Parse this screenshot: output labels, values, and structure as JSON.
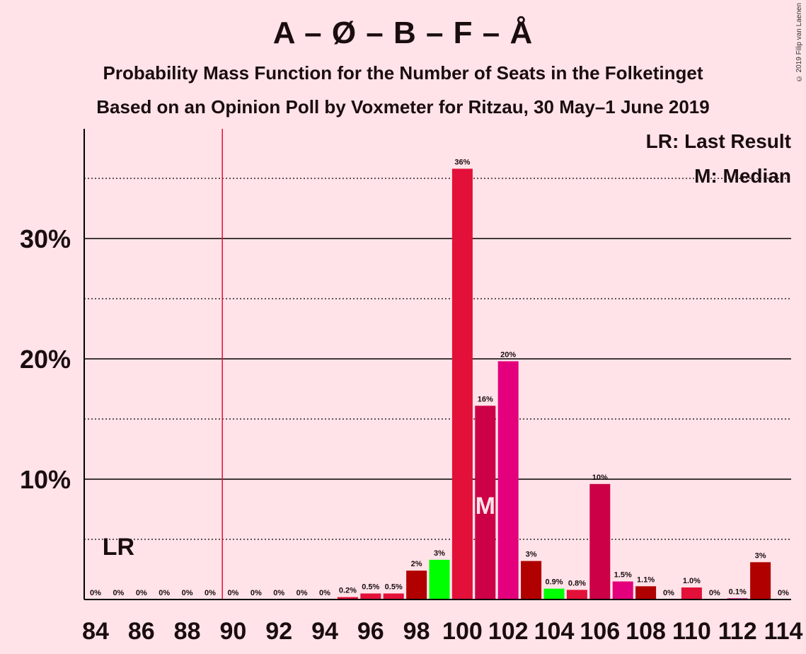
{
  "header": {
    "title": "A – Ø – B – F – Å",
    "subtitle": "Probability Mass Function for the Number of Seats in the Folketinget",
    "subtitle2": "Based on an Opinion Poll by Voxmeter for Ritzau, 30 May–1 June 2019",
    "copyright": "© 2019 Filip van Laenen"
  },
  "legend": {
    "lr": "LR: Last Result",
    "median": "M: Median"
  },
  "markers": {
    "lr_label": "LR",
    "median_label": "M"
  },
  "chart_data": {
    "type": "bar",
    "x": [
      84,
      85,
      86,
      87,
      88,
      89,
      90,
      91,
      92,
      93,
      94,
      95,
      96,
      97,
      98,
      99,
      100,
      101,
      102,
      103,
      104,
      105,
      106,
      107,
      108,
      109,
      110,
      111,
      112,
      113,
      114
    ],
    "values": [
      0,
      0,
      0,
      0,
      0,
      0,
      0,
      0,
      0,
      0,
      0,
      0.2,
      0.5,
      0.5,
      2.4,
      3.3,
      35.8,
      16.1,
      19.8,
      3.2,
      0.9,
      0.8,
      9.6,
      1.5,
      1.1,
      0,
      1.0,
      0,
      0.1,
      3.1,
      0
    ],
    "data_labels": [
      "0%",
      "0%",
      "0%",
      "0%",
      "0%",
      "0%",
      "0%",
      "0%",
      "0%",
      "0%",
      "0%",
      "0.2%",
      "0.5%",
      "0.5%",
      "2%",
      "3%",
      "36%",
      "16%",
      "20%",
      "3%",
      "0.9%",
      "0.8%",
      "10%",
      "1.5%",
      "1.1%",
      "0%",
      "1.0%",
      "0%",
      "0.1%",
      "3%",
      "0%"
    ],
    "colors": [
      "#E31039",
      "#E31039",
      "#E31039",
      "#E31039",
      "#E31039",
      "#E31039",
      "#E31039",
      "#E31039",
      "#E31039",
      "#E31039",
      "#E31039",
      "#E31039",
      "#E31039",
      "#E31039",
      "#B00000",
      "#00FF00",
      "#E31039",
      "#CC0047",
      "#E4007C",
      "#B00000",
      "#00FF00",
      "#E31039",
      "#CC0047",
      "#E4007C",
      "#B00000",
      "#00FF00",
      "#E31039",
      "#CC0047",
      "#E4007C",
      "#B00000",
      "#00FF00"
    ],
    "x_ticks": [
      "84",
      "86",
      "88",
      "90",
      "92",
      "94",
      "96",
      "98",
      "100",
      "102",
      "104",
      "106",
      "108",
      "110",
      "112",
      "114"
    ],
    "y_ticks": [
      "10%",
      "20%",
      "30%"
    ],
    "y_tick_values": [
      10,
      20,
      30
    ],
    "ylim": [
      0,
      39
    ],
    "last_result": 90,
    "median": 101,
    "grid": "dotted every 5%, solid every 10%"
  }
}
